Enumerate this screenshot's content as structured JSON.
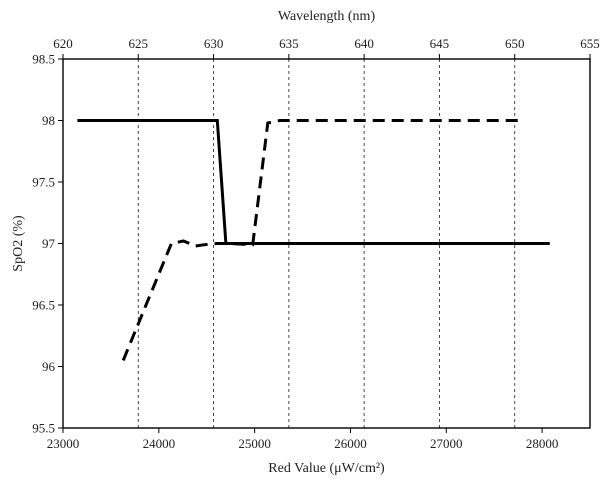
{
  "chart_data": {
    "type": "line",
    "title": "",
    "xlabel": "Red Value (μW/cm²)",
    "ylabel": "SpO2 (%)",
    "x2label": "Wavelength (nm)",
    "xlim": [
      23000,
      28500
    ],
    "x2lim": [
      620,
      655
    ],
    "ylim": [
      95.5,
      98.5
    ],
    "x_ticks": [
      "23000",
      "24000",
      "25000",
      "26000",
      "27000",
      "28000"
    ],
    "x2_ticks": [
      "620",
      "625",
      "630",
      "635",
      "640",
      "645",
      "650",
      "655"
    ],
    "y_ticks": [
      "95.5",
      "96",
      "96.5",
      "97",
      "97.5",
      "98",
      "98.5"
    ],
    "vertical_gridlines_at_wavelength": [
      625,
      630,
      635,
      640,
      645,
      650
    ],
    "grid": "vertical dashed lines",
    "legend": "none",
    "series": [
      {
        "axis": "bottom",
        "style": "solid",
        "color": "#000000",
        "x": [
          23150,
          24610,
          24700,
          28080
        ],
        "y": [
          98,
          98,
          97,
          97
        ]
      },
      {
        "axis": "top",
        "style": "dashed",
        "color": "#000000",
        "x": [
          624.0,
          627.2,
          628.0,
          628.8,
          629.4,
          630.2,
          630.9,
          632.6,
          633.6,
          634.4,
          639.0,
          644.0,
          650.3
        ],
        "y": [
          96.05,
          97.0,
          97.02,
          96.98,
          96.99,
          97.0,
          97.0,
          96.99,
          97.98,
          98.0,
          98.0,
          98.0,
          98.0
        ]
      }
    ]
  }
}
